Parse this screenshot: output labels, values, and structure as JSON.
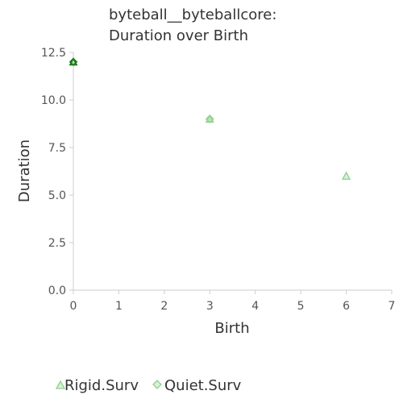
{
  "chart_data": {
    "type": "scatter",
    "title_lines": [
      "byteball__byteballcore:",
      "Duration over Birth"
    ],
    "xlabel": "Birth",
    "ylabel": "Duration",
    "xlim": [
      0,
      7
    ],
    "ylim": [
      0,
      12.5
    ],
    "x_ticks": [
      "0",
      "1",
      "2",
      "3",
      "4",
      "5",
      "6",
      "7"
    ],
    "y_ticks": [
      "0.0",
      "2.5",
      "5.0",
      "7.5",
      "10.0",
      "12.5"
    ],
    "grid": false,
    "legend_position": "bottom",
    "series": [
      {
        "name": "Rigid.Surv",
        "marker": "triangle",
        "color": "#8fd18f",
        "points": [
          {
            "x": 0,
            "y": 12
          },
          {
            "x": 3,
            "y": 9
          },
          {
            "x": 6,
            "y": 6
          }
        ]
      },
      {
        "name": "Quiet.Surv",
        "marker": "diamond",
        "color": "#8fd18f",
        "points": [
          {
            "x": 0,
            "y": 12
          },
          {
            "x": 3,
            "y": 9
          }
        ]
      }
    ],
    "highlight_color": "#1a7a1a"
  }
}
